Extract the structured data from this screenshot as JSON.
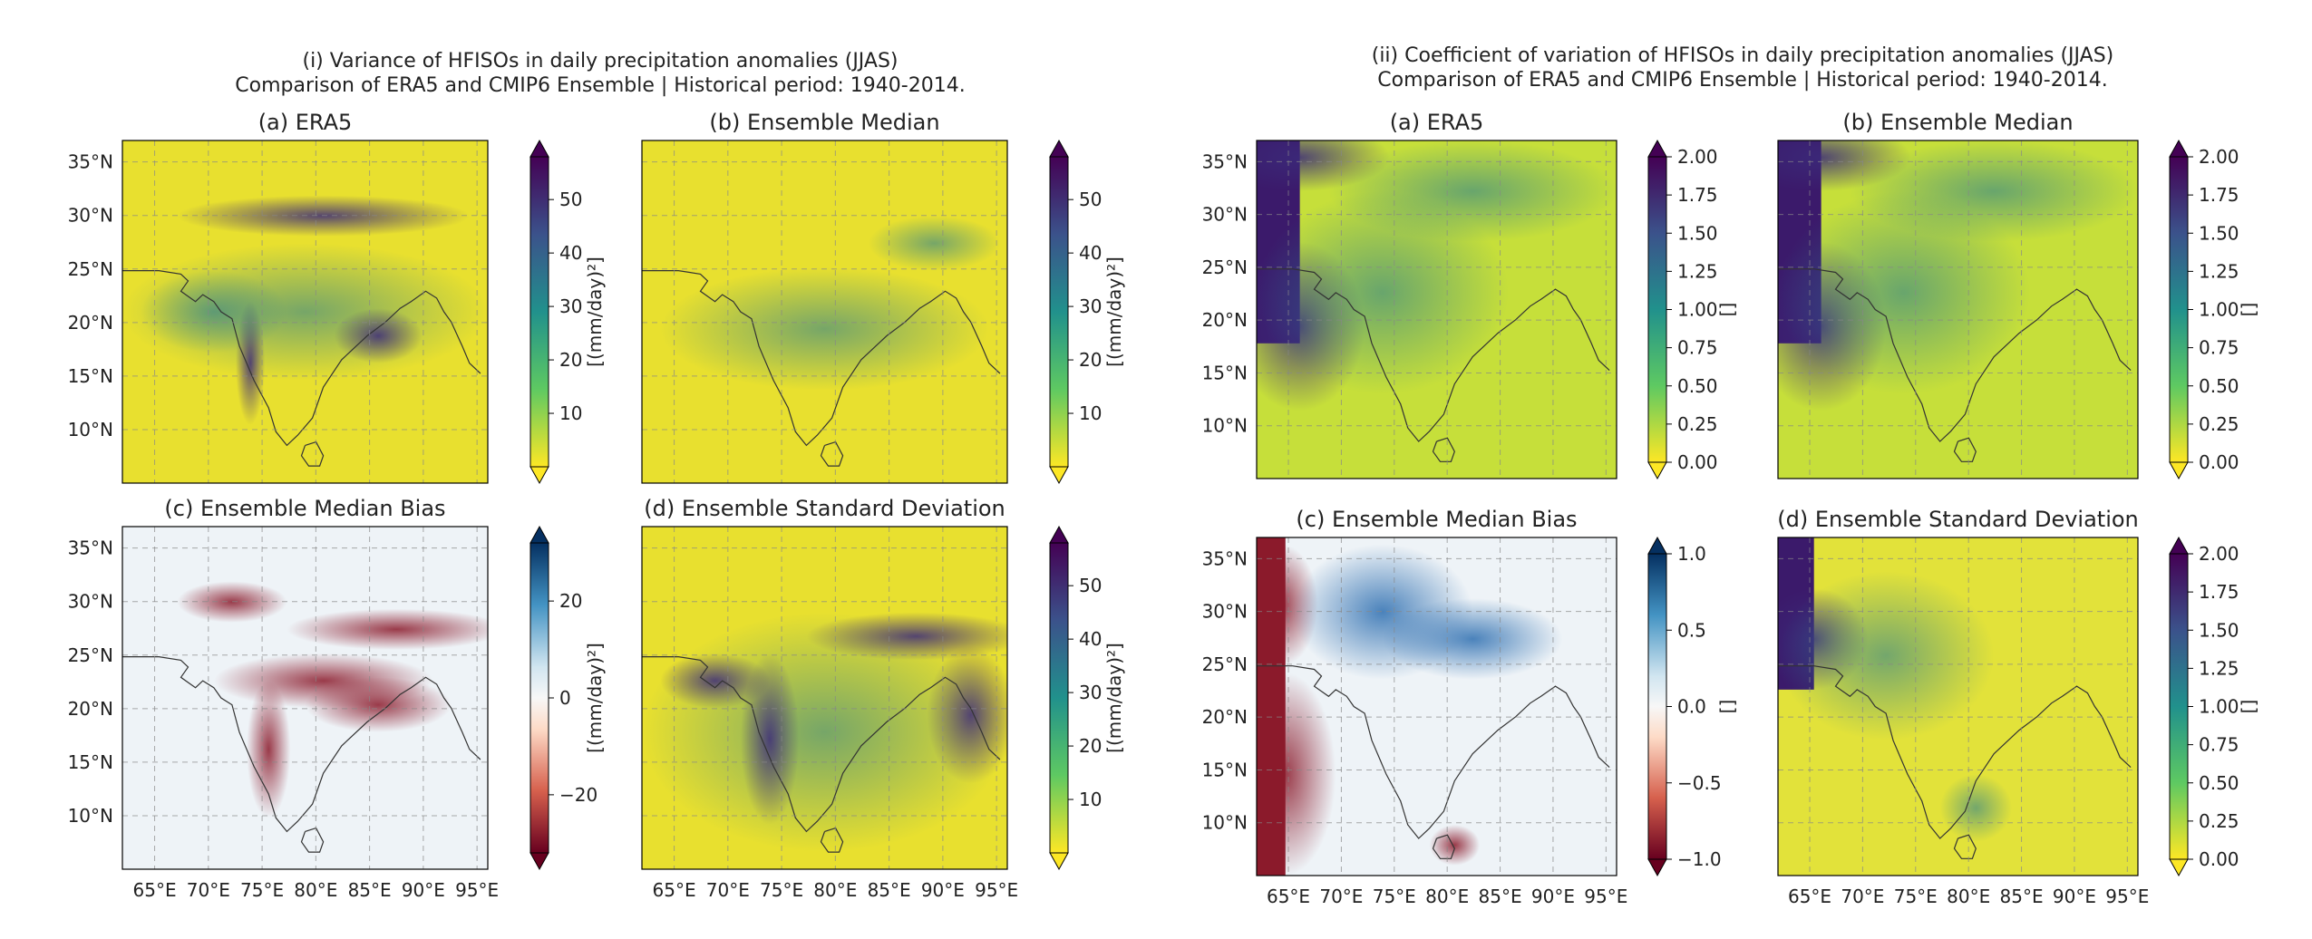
{
  "figures": [
    {
      "title_line1": "(i) Variance of HFISOs in daily precipitation anomalies (JJAS)",
      "title_line2": "Comparison of ERA5 and CMIP6 Ensemble | Historical period: 1940-2014.",
      "panels": [
        {
          "title": "(a) ERA5",
          "colorbar": {
            "cmap": "viridis_r",
            "ticks": [
              "10",
              "20",
              "30",
              "40",
              "50"
            ],
            "label": "[(mm/day)²]"
          }
        },
        {
          "title": "(b) Ensemble Median",
          "colorbar": {
            "cmap": "viridis_r",
            "ticks": [
              "10",
              "20",
              "30",
              "40",
              "50"
            ],
            "label": "[(mm/day)²]"
          }
        },
        {
          "title": "(c) Ensemble Median Bias",
          "colorbar": {
            "cmap": "RdBu",
            "ticks": [
              "20",
              "0",
              "−20"
            ],
            "label": "[(mm/day)²]"
          }
        },
        {
          "title": "(d) Ensemble Standard Deviation",
          "colorbar": {
            "cmap": "viridis_r",
            "ticks": [
              "10",
              "20",
              "30",
              "40",
              "50"
            ],
            "label": "[(mm/day)²]"
          }
        }
      ]
    },
    {
      "title_line1": "(ii) Coefficient of variation of HFISOs in daily precipitation anomalies (JJAS)",
      "title_line2": "Comparison of ERA5 and CMIP6 Ensemble | Historical period: 1940-2014.",
      "panels": [
        {
          "title": "(a) ERA5",
          "colorbar": {
            "cmap": "viridis_r",
            "ticks": [
              "2.00",
              "1.75",
              "1.50",
              "1.25",
              "1.00",
              "0.75",
              "0.50",
              "0.25",
              "0.00"
            ],
            "label": "[]"
          }
        },
        {
          "title": "(b) Ensemble Median",
          "colorbar": {
            "cmap": "viridis_r",
            "ticks": [
              "2.00",
              "1.75",
              "1.50",
              "1.25",
              "1.00",
              "0.75",
              "0.50",
              "0.25",
              "0.00"
            ],
            "label": "[]"
          }
        },
        {
          "title": "(c) Ensemble Median Bias",
          "colorbar": {
            "cmap": "RdBu",
            "ticks": [
              "1.0",
              "0.5",
              "0.0",
              "−0.5",
              "−1.0"
            ],
            "label": "[]"
          }
        },
        {
          "title": "(d) Ensemble Standard Deviation",
          "colorbar": {
            "cmap": "viridis_r",
            "ticks": [
              "2.00",
              "1.75",
              "1.50",
              "1.25",
              "1.00",
              "0.75",
              "0.50",
              "0.25",
              "0.00"
            ],
            "label": "[]"
          }
        }
      ]
    }
  ],
  "chart_data": {
    "type": "heatmap",
    "lat_ticks": [
      "35°N",
      "30°N",
      "25°N",
      "20°N",
      "15°N",
      "10°N"
    ],
    "lon_ticks": [
      "65°E",
      "70°E",
      "75°E",
      "80°E",
      "85°E",
      "90°E",
      "95°E"
    ],
    "lon_range": [
      62,
      96
    ],
    "lat_range": [
      5,
      37
    ],
    "grid": true,
    "colors": {
      "viridis_low": "#fde725",
      "viridis_mid": "#21918c",
      "viridis_high": "#440154",
      "rdbu_low": "#67001f",
      "rdbu_mid": "#f7f7f7",
      "rdbu_high": "#053061"
    }
  }
}
